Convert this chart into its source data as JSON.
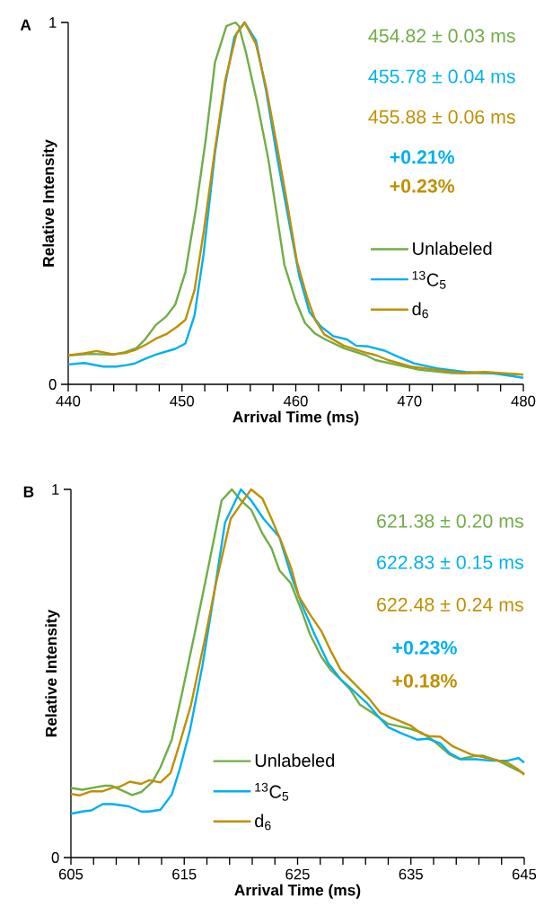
{
  "chart_data": [
    {
      "type": "line",
      "title": "A",
      "xlabel": "Arrival Time (ms)",
      "ylabel": "Relative Intensity",
      "xlim": [
        440,
        480
      ],
      "ylim": [
        0,
        1
      ],
      "xticks": [
        440,
        {
          "value": 442,
          "label": null
        },
        {
          "value": 444,
          "label": null
        },
        {
          "value": 446,
          "label": null
        },
        {
          "value": 448,
          "label": null
        },
        450,
        {
          "value": 452,
          "label": null
        },
        {
          "value": 454,
          "label": null
        },
        {
          "value": 456,
          "label": null
        },
        {
          "value": 458,
          "label": null
        },
        460,
        {
          "value": 462,
          "label": null
        },
        {
          "value": 464,
          "label": null
        },
        {
          "value": 466,
          "label": null
        },
        {
          "value": 468,
          "label": null
        },
        470,
        {
          "value": 472,
          "label": null
        },
        {
          "value": 474,
          "label": null
        },
        {
          "value": 476,
          "label": null
        },
        {
          "value": 478,
          "label": null
        },
        480
      ],
      "yticks": [
        0,
        1
      ],
      "legend": "right",
      "annotations": [
        "454.82 ± 0.03 ms",
        "455.78 ± 0.04 ms",
        "455.88 ± 0.06 ms",
        "+0.21%",
        "+0.23%"
      ],
      "series": [
        {
          "name": "Unlabeled",
          "color": "#70ad47",
          "x": [
            440,
            442,
            444,
            445,
            446,
            446.75,
            447.7,
            448.6,
            449.4,
            450.3,
            451.25,
            452.1,
            452.9,
            453.9,
            454.7,
            455.0,
            455.6,
            456.6,
            457.6,
            459.0,
            460.0,
            460.8,
            461.7,
            462.6,
            464.2,
            466.2,
            467.0,
            469.0,
            470.9,
            473.8,
            476.6,
            480
          ],
          "values": [
            0.08,
            0.084,
            0.082,
            0.089,
            0.1,
            0.124,
            0.164,
            0.187,
            0.22,
            0.31,
            0.49,
            0.68,
            0.89,
            0.99,
            1.0,
            0.99,
            0.92,
            0.78,
            0.62,
            0.33,
            0.23,
            0.17,
            0.14,
            0.124,
            0.1,
            0.08,
            0.067,
            0.053,
            0.04,
            0.031,
            0.031,
            0.027
          ]
        },
        {
          "name": "$^{13}$C$_{5}$",
          "color": "#00b0f0",
          "x": [
            440,
            441.4,
            443.1,
            444.2,
            445.1,
            445.8,
            446.8,
            447.7,
            449.4,
            450.3,
            451.1,
            451.9,
            452.9,
            453.8,
            454.6,
            455.5,
            456.5,
            457.4,
            458.4,
            459.4,
            460.3,
            461.2,
            462.2,
            463.3,
            464.5,
            465.3,
            466.3,
            467.8,
            469.0,
            470.4,
            472.4,
            474.9,
            477.4,
            480
          ],
          "values": [
            0.055,
            0.059,
            0.049,
            0.049,
            0.053,
            0.057,
            0.071,
            0.082,
            0.098,
            0.113,
            0.19,
            0.36,
            0.64,
            0.83,
            0.96,
            1.0,
            0.95,
            0.81,
            0.62,
            0.45,
            0.3,
            0.2,
            0.16,
            0.133,
            0.124,
            0.107,
            0.105,
            0.093,
            0.076,
            0.058,
            0.044,
            0.034,
            0.03,
            0.018
          ]
        },
        {
          "name": "d$_{6}$",
          "color": "#bf9000",
          "x": [
            440,
            441.4,
            442.5,
            443.9,
            445.1,
            445.9,
            446.9,
            447.7,
            448.7,
            449.6,
            450.3,
            451.1,
            451.9,
            452.9,
            453.8,
            454.8,
            455.5,
            456.5,
            457.4,
            458.4,
            459.3,
            460.1,
            461.0,
            461.7,
            462.5,
            464.2,
            466.0,
            467.1,
            468.1,
            470.1,
            472.4,
            474.6,
            476.6,
            480
          ],
          "values": [
            0.08,
            0.086,
            0.092,
            0.083,
            0.087,
            0.095,
            0.111,
            0.126,
            0.14,
            0.16,
            0.178,
            0.26,
            0.42,
            0.65,
            0.84,
            0.97,
            1.0,
            0.94,
            0.82,
            0.65,
            0.49,
            0.34,
            0.24,
            0.178,
            0.138,
            0.107,
            0.089,
            0.08,
            0.067,
            0.049,
            0.04,
            0.031,
            0.034,
            0.027
          ]
        }
      ]
    },
    {
      "type": "line",
      "title": "B",
      "xlabel": "Arrival Time (ms)",
      "ylabel": "Relative Intensity",
      "xlim": [
        605,
        645
      ],
      "ylim": [
        0,
        1
      ],
      "xticks": [
        605,
        {
          "value": 607,
          "label": null
        },
        {
          "value": 609,
          "label": null
        },
        {
          "value": 611,
          "label": null
        },
        {
          "value": 613,
          "label": null
        },
        615,
        {
          "value": 617,
          "label": null
        },
        {
          "value": 619,
          "label": null
        },
        {
          "value": 621,
          "label": null
        },
        {
          "value": 623,
          "label": null
        },
        625,
        {
          "value": 627,
          "label": null
        },
        {
          "value": 629,
          "label": null
        },
        {
          "value": 631,
          "label": null
        },
        {
          "value": 633,
          "label": null
        },
        635,
        {
          "value": 637,
          "label": null
        },
        {
          "value": 639,
          "label": null
        },
        {
          "value": 641,
          "label": null
        },
        {
          "value": 643,
          "label": null
        },
        645
      ],
      "yticks": [
        0,
        1
      ],
      "legend": "bottom",
      "annotations": [
        "621.38 ± 0.20 ms",
        "622.83 ± 0.15 ms",
        "622.48 ± 0.24 ms",
        "+0.23%",
        "+0.18%"
      ],
      "series": [
        {
          "name": "Unlabeled",
          "color": "#70ad47",
          "x": [
            605,
            606,
            607,
            608,
            608.6,
            610.4,
            611.2,
            612.2,
            612.9,
            613.9,
            614.9,
            616.0,
            617.2,
            618.3,
            618.9,
            619.2,
            620.0,
            620.9,
            621.9,
            622.7,
            623.4,
            624.4,
            625.4,
            626.1,
            627.1,
            627.9,
            628.8,
            629.6,
            630.5,
            631.6,
            633.0,
            633.9,
            634.9,
            635.9,
            636.9,
            638.4,
            639.3,
            640.6,
            641.3,
            642.7,
            644.2,
            645
          ],
          "values": [
            0.189,
            0.184,
            0.19,
            0.195,
            0.195,
            0.17,
            0.178,
            0.206,
            0.245,
            0.32,
            0.46,
            0.62,
            0.8,
            0.97,
            0.99,
            1.0,
            0.97,
            0.945,
            0.88,
            0.84,
            0.78,
            0.745,
            0.667,
            0.606,
            0.545,
            0.51,
            0.484,
            0.458,
            0.415,
            0.393,
            0.363,
            0.357,
            0.35,
            0.34,
            0.32,
            0.28,
            0.267,
            0.276,
            0.277,
            0.263,
            0.24,
            0.228
          ]
        },
        {
          "name": "$^{13}$C$_{5}$",
          "color": "#00b0f0",
          "x": [
            605,
            606,
            606.8,
            607.8,
            608.7,
            610.1,
            611.2,
            611.9,
            612.9,
            613.9,
            614.6,
            615.5,
            616.6,
            617.6,
            618.6,
            620.0,
            620.9,
            622.0,
            623.4,
            624.5,
            625.4,
            626.5,
            627.7,
            628.8,
            629.9,
            631.1,
            632.1,
            633.0,
            634.2,
            635.6,
            636.5,
            637.6,
            638.4,
            639.4,
            640.7,
            642.1,
            643.5,
            644.5,
            645
          ],
          "values": [
            0.119,
            0.125,
            0.128,
            0.145,
            0.145,
            0.139,
            0.125,
            0.125,
            0.13,
            0.171,
            0.24,
            0.345,
            0.52,
            0.71,
            0.91,
            1.0,
            0.97,
            0.92,
            0.87,
            0.76,
            0.685,
            0.606,
            0.528,
            0.484,
            0.454,
            0.42,
            0.384,
            0.354,
            0.337,
            0.32,
            0.323,
            0.31,
            0.284,
            0.267,
            0.267,
            0.263,
            0.263,
            0.27,
            0.258
          ]
        },
        {
          "name": "d$_{6}$",
          "color": "#bf9000",
          "x": [
            605,
            605.8,
            606.8,
            607.8,
            608.7,
            609.3,
            610.2,
            611.2,
            611.9,
            612.9,
            613.8,
            614.6,
            615.6,
            616.8,
            617.8,
            619.1,
            620.0,
            620.9,
            621.9,
            622.7,
            623.6,
            624.5,
            625.1,
            626.1,
            627.1,
            627.9,
            628.8,
            629.9,
            631.3,
            632.3,
            633.6,
            635.0,
            635.9,
            636.6,
            637.6,
            638.7,
            640.3,
            641.6,
            643.5,
            644.4,
            645
          ],
          "values": [
            0.173,
            0.169,
            0.18,
            0.18,
            0.19,
            0.192,
            0.206,
            0.2,
            0.21,
            0.204,
            0.23,
            0.31,
            0.415,
            0.59,
            0.745,
            0.92,
            0.96,
            1.0,
            0.975,
            0.92,
            0.855,
            0.78,
            0.71,
            0.66,
            0.615,
            0.563,
            0.51,
            0.476,
            0.432,
            0.393,
            0.376,
            0.358,
            0.337,
            0.33,
            0.328,
            0.302,
            0.28,
            0.271,
            0.258,
            0.241,
            0.225
          ]
        }
      ]
    }
  ]
}
